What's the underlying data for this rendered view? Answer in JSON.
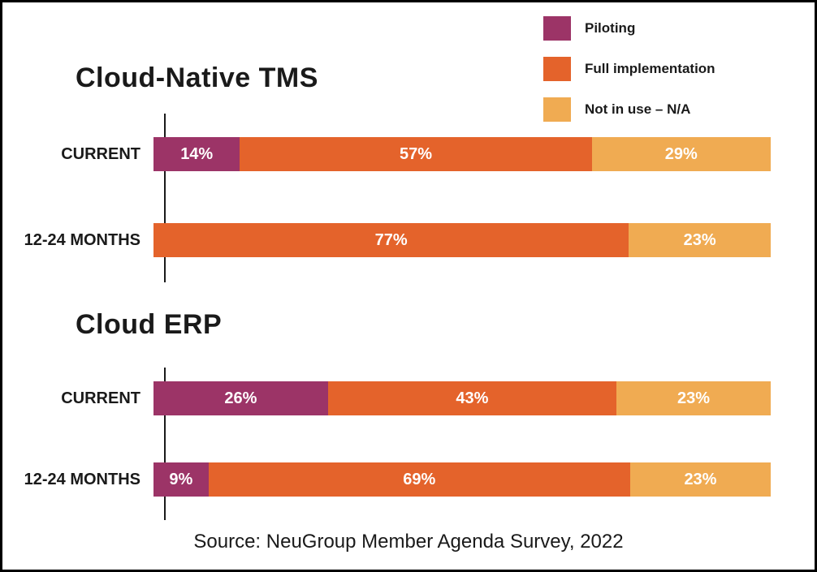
{
  "legend": {
    "items": [
      {
        "label": "Piloting",
        "color": "#9C3467"
      },
      {
        "label": "Full implementation",
        "color": "#E4632B"
      },
      {
        "label": "Not in use – N/A",
        "color": "#F0AB52"
      }
    ]
  },
  "source": "Source: NeuGroup Member Agenda Survey, 2022",
  "colors": {
    "piloting": "#9C3467",
    "full_implementation": "#E4632B",
    "not_in_use": "#F0AB52",
    "text": "#1a1a1a",
    "bar_label": "#ffffff"
  },
  "chart_data": [
    {
      "type": "bar",
      "orientation": "horizontal",
      "stacked": true,
      "title": "Cloud-Native TMS",
      "categories": [
        "CURRENT",
        "12-24 MONTHS"
      ],
      "series": [
        {
          "name": "Piloting",
          "color": "#9C3467",
          "values": [
            14,
            0
          ]
        },
        {
          "name": "Full implementation",
          "color": "#E4632B",
          "values": [
            57,
            77
          ]
        },
        {
          "name": "Not in use – N/A",
          "color": "#F0AB52",
          "values": [
            29,
            23
          ]
        }
      ],
      "value_suffix": "%",
      "xlim": [
        0,
        100
      ],
      "grid": false,
      "legend_position": "top-right"
    },
    {
      "type": "bar",
      "orientation": "horizontal",
      "stacked": true,
      "title": "Cloud ERP",
      "categories": [
        "CURRENT",
        "12-24 MONTHS"
      ],
      "series": [
        {
          "name": "Piloting",
          "color": "#9C3467",
          "values": [
            26,
            9
          ]
        },
        {
          "name": "Full implementation",
          "color": "#E4632B",
          "values": [
            43,
            69
          ]
        },
        {
          "name": "Not in use – N/A",
          "color": "#F0AB52",
          "values": [
            23,
            23
          ]
        }
      ],
      "value_suffix": "%",
      "xlim": [
        0,
        100
      ],
      "grid": false,
      "legend_position": "top-right"
    }
  ]
}
